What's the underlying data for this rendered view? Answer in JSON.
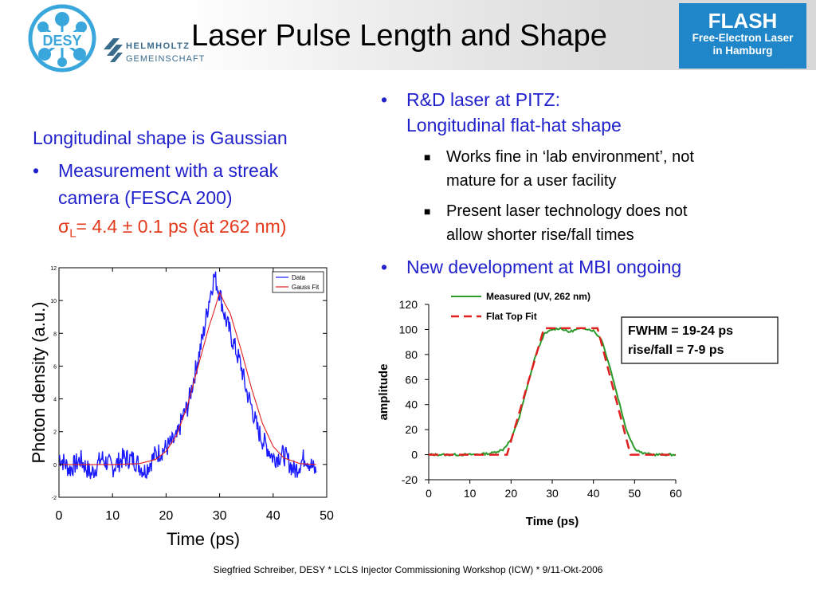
{
  "header": {
    "title": "Laser Pulse Length and Shape",
    "desy_logo_text": "DESY",
    "helmholtz_line1": "HELMHOLTZ",
    "helmholtz_line2": "GEMEINSCHAFT",
    "flash_name": "FLASH",
    "flash_sub1": "Free-Electron Laser",
    "flash_sub2": "in Hamburg"
  },
  "left": {
    "heading": "Longitudinal shape is Gaussian",
    "bullet_line1": "Measurement with a streak",
    "bullet_line2": "camera (FESCA 200)",
    "sigma_symbol": "σ",
    "sigma_sub": "L",
    "sigma_value": "= 4.4 ± 0.1 ps (at 262 nm)"
  },
  "right": {
    "bullet1_line1": "R&D laser at PITZ:",
    "bullet1_line2": "Longitudinal flat-hat shape",
    "sub1_line1": "Works fine in ‘lab environment’, not",
    "sub1_line2": "mature for a user facility",
    "sub2_line1": "Present laser technology does not",
    "sub2_line2": "allow shorter rise/fall times",
    "bullet2": "New development at MBI ongoing"
  },
  "footer": "Siegfried Schreiber, DESY  * LCLS Injector Commissioning Workshop (ICW) * 9/11-Okt-2006",
  "chart_data": [
    {
      "type": "line",
      "xlabel": "Time (ps)",
      "ylabel": "Photon density (a.u.)",
      "xlim": [
        0,
        50
      ],
      "ylim": [
        -2,
        12
      ],
      "x_ticks": [
        "0",
        "10",
        "20",
        "30",
        "40",
        "50"
      ],
      "y_ticks": [
        "-2",
        "0",
        "2",
        "4",
        "6",
        "8",
        "10",
        "12"
      ],
      "legend_position": "top-right",
      "series": [
        {
          "name": "Data",
          "color": "#1a1aff",
          "x": [
            0,
            2,
            4,
            6,
            8,
            10,
            12,
            14,
            16,
            18,
            20,
            22,
            23,
            24,
            25,
            26,
            27,
            28,
            29,
            30,
            31,
            32,
            33,
            34,
            35,
            36,
            37,
            38,
            39,
            40,
            42,
            44,
            46,
            48
          ],
          "y": [
            0.5,
            -0.3,
            0.3,
            -0.6,
            0.4,
            -0.2,
            0.4,
            0.3,
            -0.4,
            0.6,
            1.0,
            1.6,
            2.8,
            3.5,
            5.0,
            6.5,
            8.0,
            10.0,
            11.5,
            10.5,
            9.0,
            8.0,
            7.0,
            6.0,
            4.5,
            3.5,
            2.2,
            1.5,
            1.0,
            0.4,
            0.6,
            -0.4,
            0.5,
            -0.5
          ]
        },
        {
          "name": "Gauss Fit",
          "color": "#e02020",
          "x": [
            0,
            5,
            10,
            15,
            18,
            20,
            22,
            24,
            26,
            28,
            29,
            30,
            31,
            32,
            34,
            36,
            38,
            40,
            42,
            45,
            48
          ],
          "y": [
            0,
            0,
            0,
            0.05,
            0.3,
            0.8,
            1.8,
            3.6,
            6.0,
            8.4,
            9.4,
            10.5,
            9.8,
            9.2,
            7.0,
            4.6,
            2.5,
            1.1,
            0.4,
            0.05,
            0
          ]
        }
      ]
    },
    {
      "type": "line",
      "xlabel": "Time (ps)",
      "ylabel": "amplitude",
      "xlim": [
        0,
        60
      ],
      "ylim": [
        -20,
        120
      ],
      "x_ticks": [
        "0",
        "10",
        "20",
        "30",
        "40",
        "50",
        "60"
      ],
      "y_ticks": [
        "-20",
        "0",
        "20",
        "40",
        "60",
        "80",
        "100",
        "120"
      ],
      "legend_position": "top",
      "annotation_line1": "FWHM = 19-24 ps",
      "annotation_line2": "rise/fall = 7-9 ps",
      "series": [
        {
          "name": "Measured (UV, 262 nm)",
          "color": "#2a9a2a",
          "x": [
            0,
            10,
            15,
            18,
            20,
            22,
            24,
            26,
            28,
            30,
            32,
            34,
            36,
            38,
            40,
            42,
            44,
            46,
            48,
            50,
            52,
            55,
            60
          ],
          "y": [
            0,
            0,
            1,
            4,
            12,
            30,
            55,
            80,
            96,
            100,
            101,
            98,
            100,
            101,
            99,
            92,
            70,
            45,
            20,
            5,
            1,
            0,
            0
          ]
        },
        {
          "name": "Flat Top Fit",
          "color": "#e02020",
          "x": [
            0,
            19,
            28,
            41,
            49,
            60
          ],
          "y": [
            0,
            0,
            101,
            101,
            0,
            0
          ]
        }
      ]
    }
  ]
}
